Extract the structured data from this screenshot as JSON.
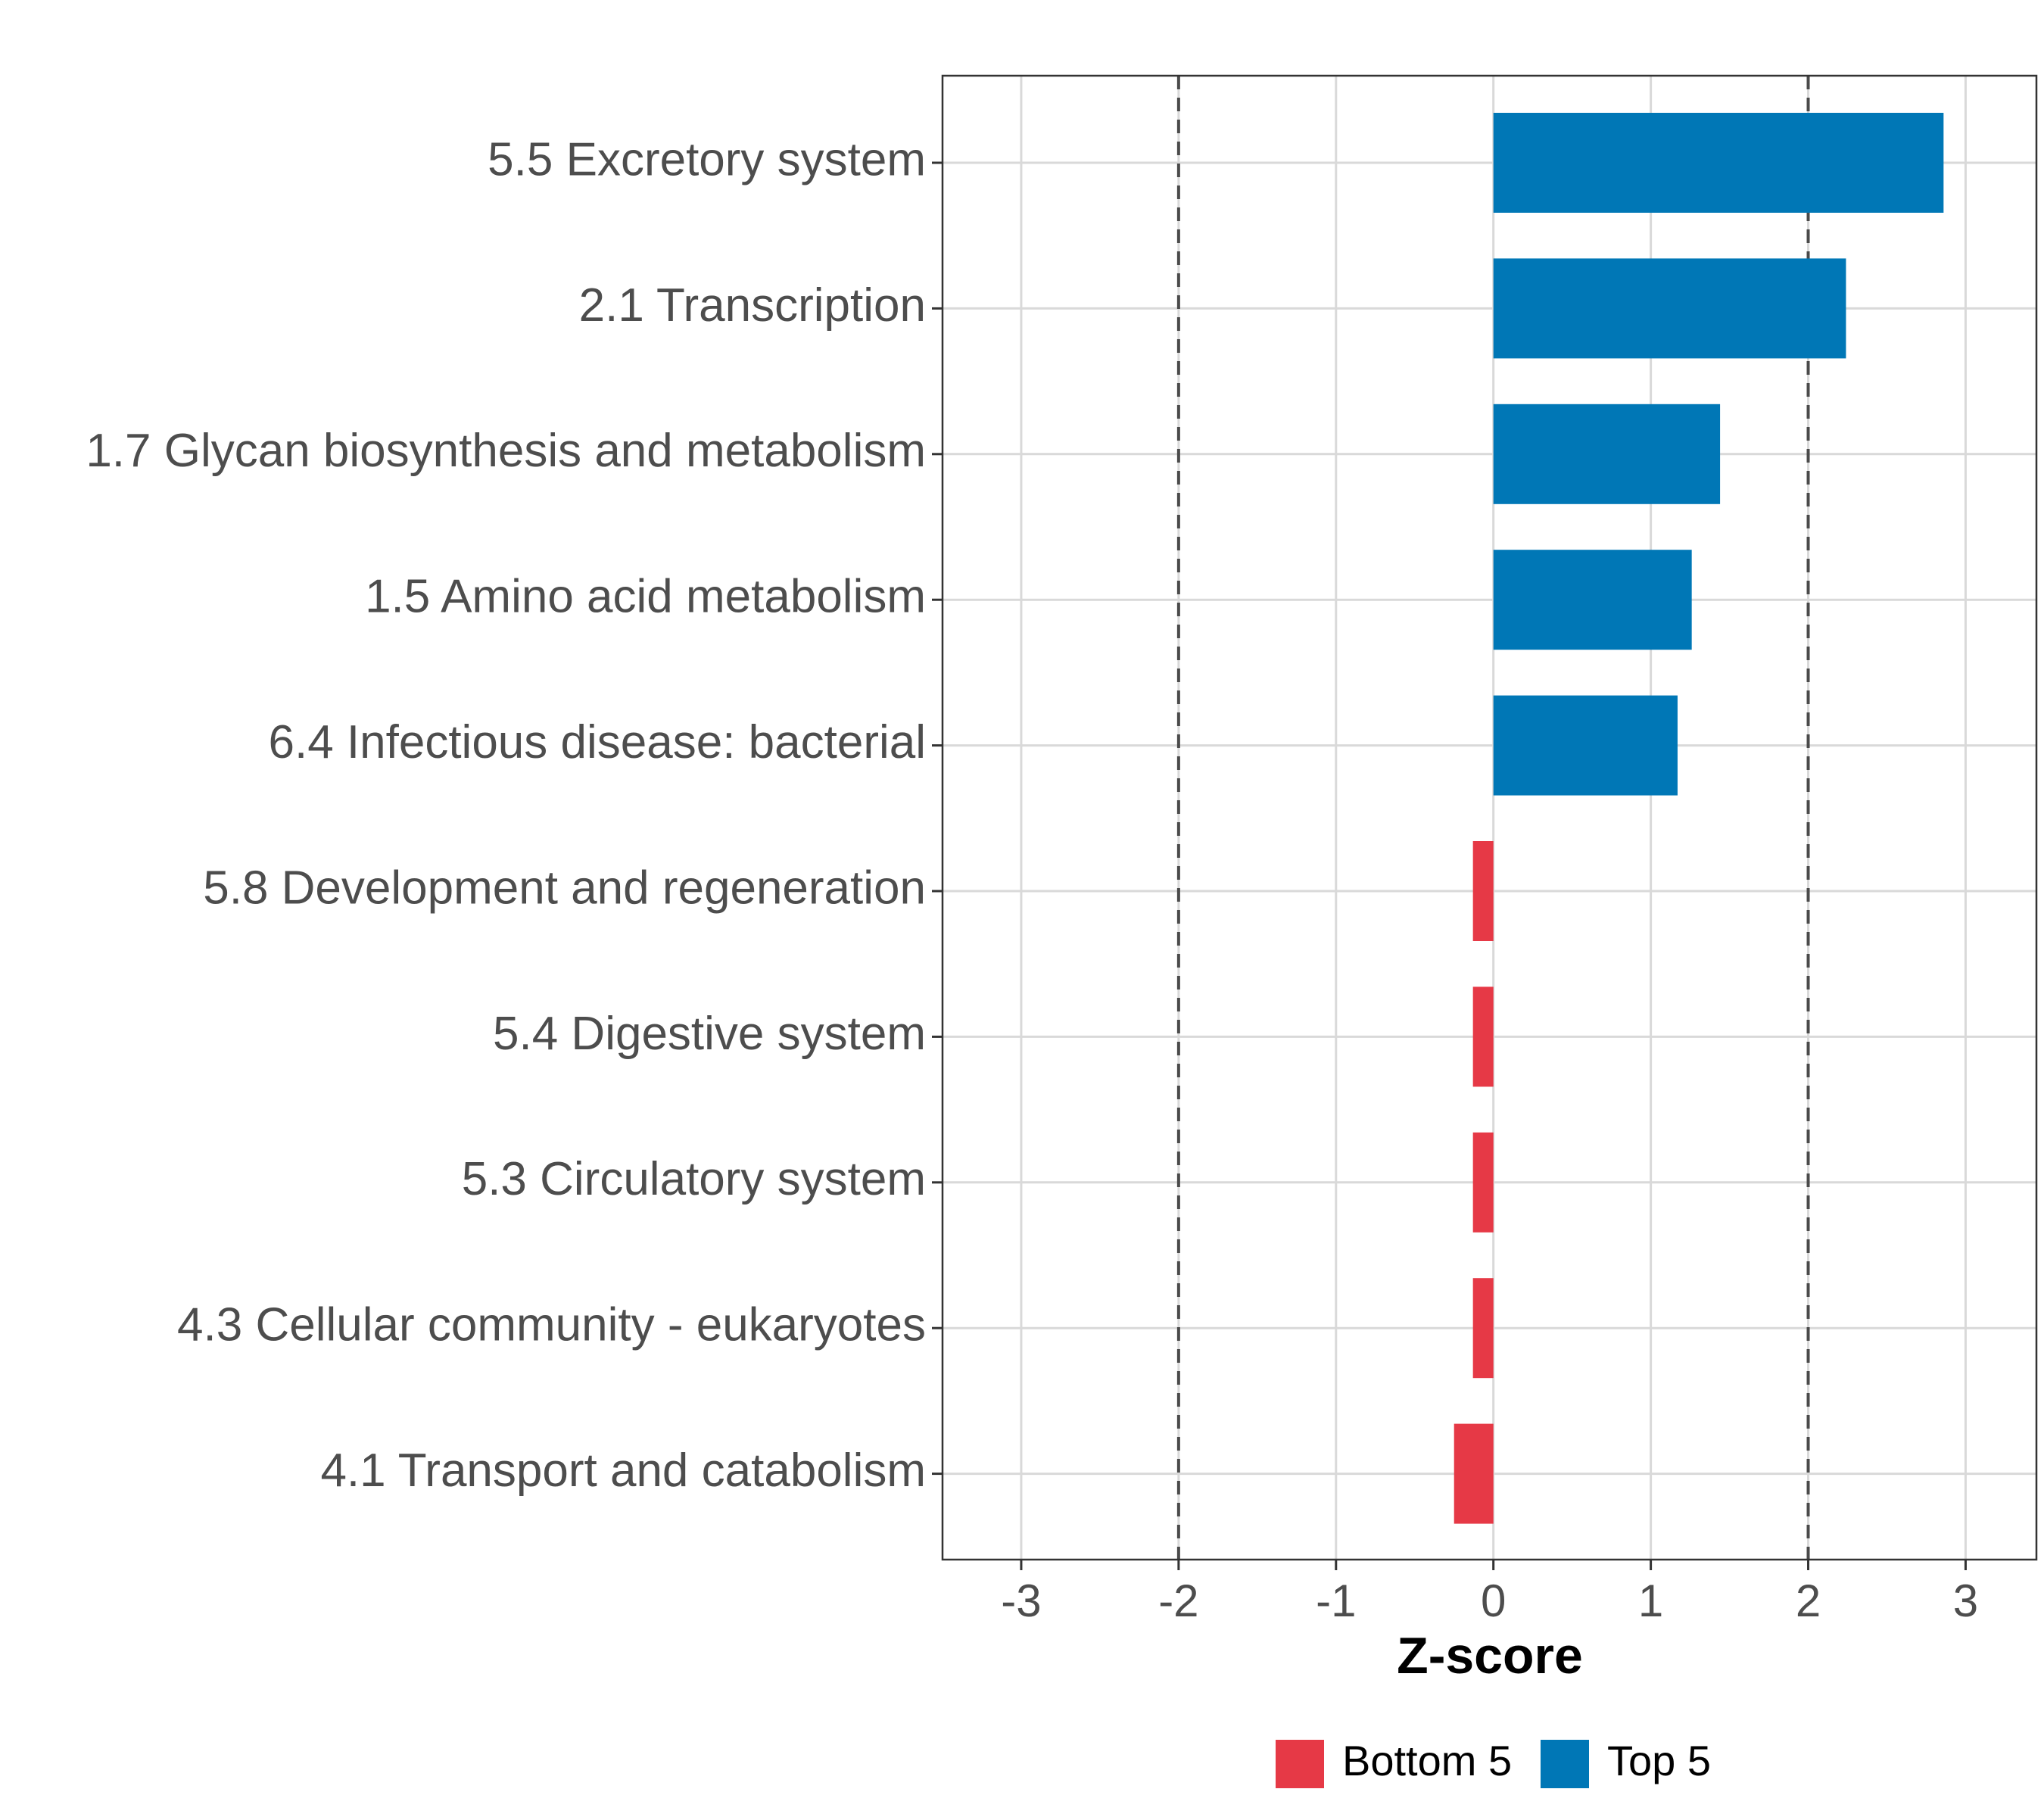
{
  "chart_data": {
    "type": "bar",
    "orientation": "horizontal",
    "title": "",
    "xlabel": "Z-score",
    "ylabel": "",
    "xlim": [
      -3.5,
      3.45
    ],
    "xticks": [
      -3,
      -2,
      -1,
      0,
      1,
      2,
      3
    ],
    "xtick_labels": [
      "-3",
      "-2",
      "-1",
      "0",
      "1",
      "2",
      "3"
    ],
    "reference_lines": [
      -2,
      2
    ],
    "grid": true,
    "categories": [
      "5.5 Excretory system",
      "2.1 Transcription",
      "1.7 Glycan biosynthesis and metabolism",
      "1.5 Amino acid metabolism",
      "6.4 Infectious disease: bacterial",
      "5.8 Development and regeneration",
      "5.4 Digestive system",
      "5.3 Circulatory system",
      "4.3 Cellular community - eukaryotes",
      "4.1 Transport and catabolism"
    ],
    "values": [
      2.86,
      2.24,
      1.44,
      1.26,
      1.17,
      -0.13,
      -0.13,
      -0.13,
      -0.13,
      -0.25
    ],
    "groups": [
      "Top 5",
      "Top 5",
      "Top 5",
      "Top 5",
      "Top 5",
      "Bottom 5",
      "Bottom 5",
      "Bottom 5",
      "Bottom 5",
      "Bottom 5"
    ],
    "legend": {
      "position": "bottom",
      "entries": [
        {
          "label": "Bottom 5",
          "color": "#e63946"
        },
        {
          "label": "Top 5",
          "color": "#0077b6"
        }
      ]
    }
  },
  "colors": {
    "top": "#0077b6",
    "bottom": "#e63946",
    "grid": "#d9d9d9",
    "text": "#4d4d4d"
  }
}
